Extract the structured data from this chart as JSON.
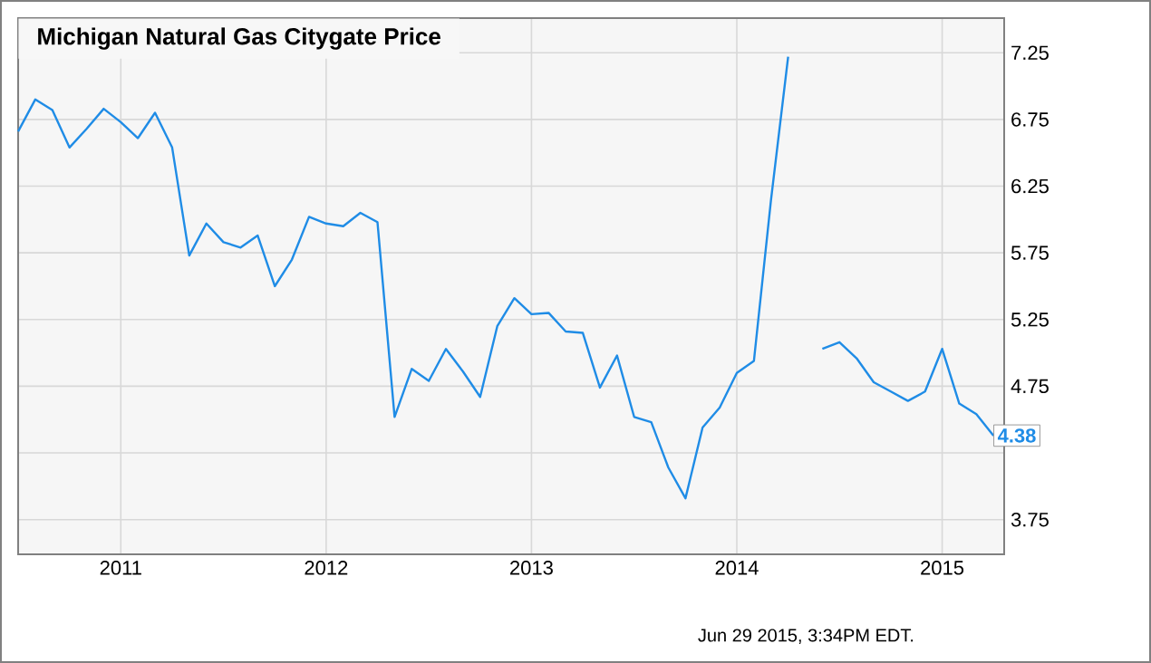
{
  "chart_data": {
    "type": "line",
    "title": "Michigan Natural Gas Citygate Price",
    "x": [
      "2010-07",
      "2010-08",
      "2010-09",
      "2010-10",
      "2010-11",
      "2010-12",
      "2011-01",
      "2011-02",
      "2011-03",
      "2011-04",
      "2011-05",
      "2011-06",
      "2011-07",
      "2011-08",
      "2011-09",
      "2011-10",
      "2011-11",
      "2011-12",
      "2012-01",
      "2012-02",
      "2012-03",
      "2012-04",
      "2012-05",
      "2012-06",
      "2012-07",
      "2012-08",
      "2012-09",
      "2012-10",
      "2012-11",
      "2012-12",
      "2013-01",
      "2013-02",
      "2013-03",
      "2013-04",
      "2013-05",
      "2013-06",
      "2013-07",
      "2013-08",
      "2013-09",
      "2013-10",
      "2013-11",
      "2013-12",
      "2014-01",
      "2014-02",
      "2014-03",
      "2014-04",
      "2014-05",
      "2014-06",
      "2014-07",
      "2014-08",
      "2014-09",
      "2014-10",
      "2014-11",
      "2014-12",
      "2015-01",
      "2015-02",
      "2015-03",
      "2015-04"
    ],
    "series": [
      {
        "color": "#1f8ce6",
        "values": [
          6.66,
          6.9,
          6.82,
          6.54,
          6.68,
          6.83,
          6.73,
          6.61,
          6.8,
          6.54,
          5.73,
          5.97,
          5.83,
          5.79,
          5.88,
          5.5,
          5.7,
          6.02,
          5.97,
          5.95,
          6.05,
          5.98,
          4.52,
          4.88,
          4.79,
          5.03,
          4.86,
          4.67,
          5.2,
          5.41,
          5.29,
          5.3,
          5.16,
          5.15,
          4.74,
          4.98,
          4.52,
          4.48,
          4.14,
          3.91,
          4.44,
          4.59,
          4.85,
          4.94,
          6.15,
          7.22,
          null,
          5.03,
          5.08,
          4.96,
          4.78,
          4.71,
          4.64,
          4.71,
          5.03,
          4.62,
          4.54,
          4.38
        ],
        "value_labels": [
          null,
          null,
          null,
          null,
          null,
          null,
          null,
          null,
          null,
          null,
          null,
          null,
          null,
          null,
          null,
          null,
          null,
          null,
          null,
          null,
          null,
          null,
          null,
          null,
          null,
          null,
          null,
          null,
          null,
          null,
          null,
          null,
          null,
          null,
          null,
          null,
          null,
          null,
          null,
          null,
          null,
          null,
          null,
          null,
          null,
          null,
          null,
          null,
          null,
          null,
          null,
          null,
          null,
          null,
          null,
          null,
          null,
          "4.38"
        ]
      }
    ],
    "xlim": [
      "2010-07",
      "2015-04-20"
    ],
    "xticks": [
      "2011",
      "2012",
      "2013",
      "2014",
      "2015"
    ],
    "ylim": [
      3.49,
      7.51
    ],
    "yticks": [
      3.75,
      {
        "value": 4.25,
        "label": null
      },
      4.75,
      5.25,
      5.75,
      6.25,
      6.75,
      7.25
    ],
    "grid": true,
    "annotations": [
      "Jun 29 2015, 3:34PM EDT."
    ]
  }
}
